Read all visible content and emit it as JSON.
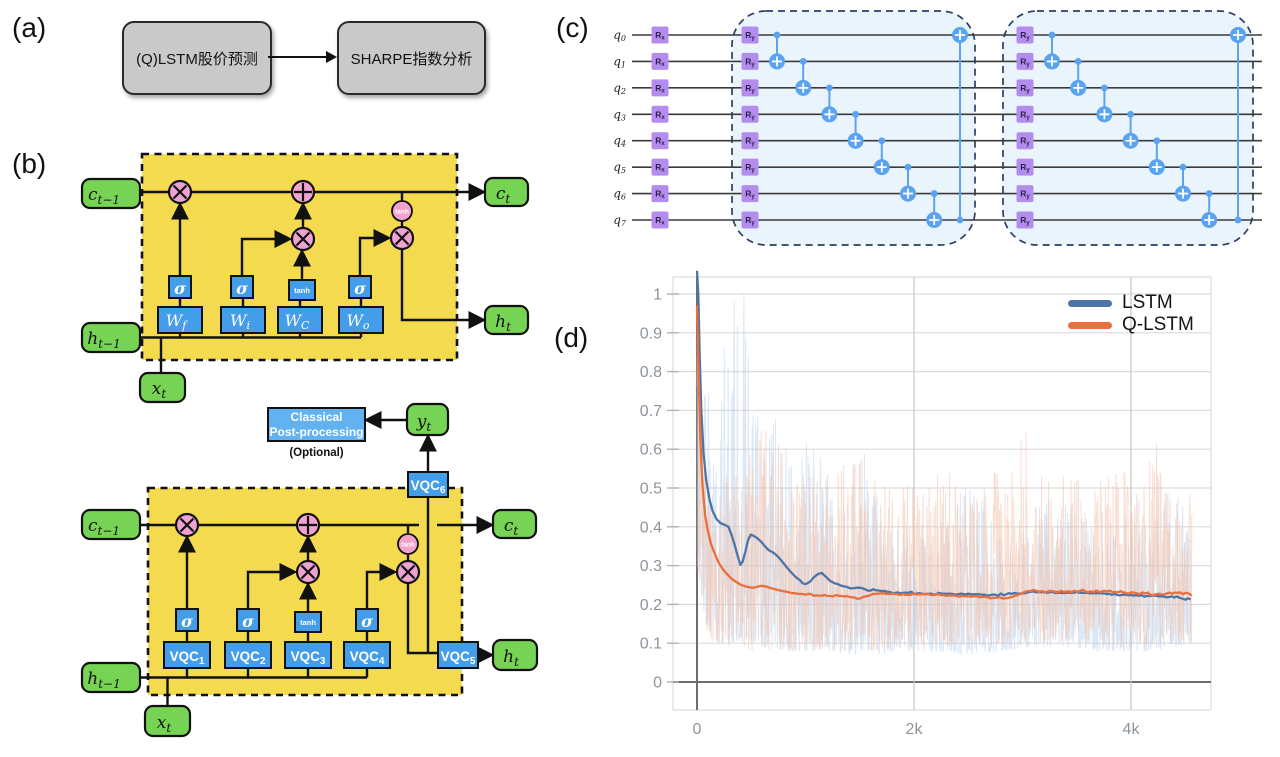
{
  "panels": {
    "a": {
      "label": "(a)",
      "box1": "(Q)LSTM股价预测",
      "box2": "SHARPE指数分析"
    },
    "b": {
      "label": "(b)",
      "classical_lstm": {
        "c_prev": {
          "base": "c",
          "sub": "t−1"
        },
        "h_prev": {
          "base": "h",
          "sub": "t−1"
        },
        "x_in": {
          "base": "x",
          "sub": "t"
        },
        "c_out": {
          "base": "c",
          "sub": "t"
        },
        "h_out": {
          "base": "h",
          "sub": "t"
        },
        "tanh_node": "tanh",
        "gates": [
          {
            "act": "σ",
            "w": {
              "base": "W",
              "sub": "f"
            }
          },
          {
            "act": "σ",
            "w": {
              "base": "W",
              "sub": "i"
            }
          },
          {
            "act": "tanh",
            "w": {
              "base": "W",
              "sub": "C"
            }
          },
          {
            "act": "σ",
            "w": {
              "base": "W",
              "sub": "o"
            }
          }
        ]
      },
      "qlstm": {
        "c_prev": {
          "base": "c",
          "sub": "t−1"
        },
        "h_prev": {
          "base": "h",
          "sub": "t−1"
        },
        "x_in": {
          "base": "x",
          "sub": "t"
        },
        "c_out": {
          "base": "c",
          "sub": "t"
        },
        "h_out": {
          "base": "h",
          "sub": "t"
        },
        "y_out": {
          "base": "y",
          "sub": "t"
        },
        "tanh_node": "tanh",
        "post_processing": {
          "line1": "Classical",
          "line2": "Post-processing",
          "note": "(Optional)"
        },
        "gates": [
          {
            "act": "σ",
            "w": {
              "base": "VQC",
              "sub": "1"
            }
          },
          {
            "act": "σ",
            "w": {
              "base": "VQC",
              "sub": "2"
            }
          },
          {
            "act": "tanh",
            "w": {
              "base": "VQC",
              "sub": "3"
            }
          },
          {
            "act": "σ",
            "w": {
              "base": "VQC",
              "sub": "4"
            }
          }
        ],
        "vqc5": {
          "base": "VQC",
          "sub": "5"
        },
        "vqc6": {
          "base": "VQC",
          "sub": "6"
        }
      }
    },
    "c": {
      "label": "(c)",
      "qubits": [
        {
          "base": "q",
          "sub": "0"
        },
        {
          "base": "q",
          "sub": "1"
        },
        {
          "base": "q",
          "sub": "2"
        },
        {
          "base": "q",
          "sub": "3"
        },
        {
          "base": "q",
          "sub": "4"
        },
        {
          "base": "q",
          "sub": "5"
        },
        {
          "base": "q",
          "sub": "6"
        },
        {
          "base": "q",
          "sub": "7"
        }
      ],
      "rx_gate": {
        "base": "R",
        "sub": "x"
      },
      "ry_gate": {
        "base": "R",
        "sub": "y"
      },
      "blocks": [
        {
          "cnots": [
            [
              0,
              1
            ],
            [
              1,
              2
            ],
            [
              2,
              3
            ],
            [
              3,
              4
            ],
            [
              4,
              5
            ],
            [
              5,
              6
            ],
            [
              6,
              7
            ],
            [
              7,
              0
            ]
          ]
        },
        {
          "cnots": [
            [
              0,
              1
            ],
            [
              1,
              2
            ],
            [
              2,
              3
            ],
            [
              3,
              4
            ],
            [
              4,
              5
            ],
            [
              5,
              6
            ],
            [
              6,
              7
            ],
            [
              7,
              0
            ]
          ]
        }
      ],
      "colors": {
        "gate_purple": "#b48cee",
        "gate_text": "#2d2550",
        "cnot_blue": "#5aa2f2",
        "block_fill": "#eaf4fc",
        "block_border": "#2b3f63",
        "wire": "#3a3a3a"
      }
    },
    "d": {
      "label": "(d)"
    }
  },
  "chart_data": {
    "type": "line",
    "title": "",
    "xlabel": "",
    "ylabel": "",
    "x_ticks": [
      {
        "value": 0,
        "label": "0"
      },
      {
        "value": 2000,
        "label": "2k"
      },
      {
        "value": 4000,
        "label": "4k"
      }
    ],
    "y_ticks": [
      {
        "value": 0,
        "label": "0"
      },
      {
        "value": 0.1,
        "label": "0.1"
      },
      {
        "value": 0.2,
        "label": "0.2"
      },
      {
        "value": 0.3,
        "label": "0.3"
      },
      {
        "value": 0.4,
        "label": "0.4"
      },
      {
        "value": 0.5,
        "label": "0.5"
      },
      {
        "value": 0.6,
        "label": "0.6"
      },
      {
        "value": 0.7,
        "label": "0.7"
      },
      {
        "value": 0.8,
        "label": "0.8"
      },
      {
        "value": 0.9,
        "label": "0.9"
      },
      {
        "value": 1,
        "label": "1"
      }
    ],
    "xlim": [
      -220,
      4740
    ],
    "ylim": [
      -0.072,
      1.044
    ],
    "grid": true,
    "legend_position": "top-right",
    "legend": [
      "LSTM",
      "Q-LSTM"
    ],
    "series": [
      {
        "name": "LSTM",
        "color": "#4e74a6",
        "smoothed": [
          [
            0,
            1.06
          ],
          [
            12,
            1.0
          ],
          [
            25,
            0.84
          ],
          [
            40,
            0.7
          ],
          [
            60,
            0.59
          ],
          [
            85,
            0.52
          ],
          [
            115,
            0.47
          ],
          [
            145,
            0.44
          ],
          [
            180,
            0.42
          ],
          [
            215,
            0.41
          ],
          [
            255,
            0.405
          ],
          [
            290,
            0.4
          ],
          [
            320,
            0.378
          ],
          [
            350,
            0.35
          ],
          [
            380,
            0.32
          ],
          [
            400,
            0.302
          ],
          [
            420,
            0.31
          ],
          [
            445,
            0.335
          ],
          [
            470,
            0.365
          ],
          [
            495,
            0.38
          ],
          [
            520,
            0.377
          ],
          [
            555,
            0.371
          ],
          [
            590,
            0.362
          ],
          [
            625,
            0.35
          ],
          [
            660,
            0.34
          ],
          [
            700,
            0.334
          ],
          [
            740,
            0.325
          ],
          [
            780,
            0.312
          ],
          [
            820,
            0.298
          ],
          [
            860,
            0.285
          ],
          [
            900,
            0.273
          ],
          [
            950,
            0.262
          ],
          [
            1000,
            0.252
          ],
          [
            1040,
            0.258
          ],
          [
            1080,
            0.271
          ],
          [
            1120,
            0.279
          ],
          [
            1150,
            0.281
          ],
          [
            1185,
            0.272
          ],
          [
            1225,
            0.261
          ],
          [
            1270,
            0.254
          ],
          [
            1320,
            0.249
          ],
          [
            1380,
            0.245
          ],
          [
            1450,
            0.242
          ],
          [
            1550,
            0.239
          ],
          [
            1650,
            0.236
          ],
          [
            1750,
            0.233
          ],
          [
            1850,
            0.231
          ],
          [
            1950,
            0.23
          ],
          [
            2050,
            0.229
          ],
          [
            2150,
            0.228
          ],
          [
            2250,
            0.228
          ],
          [
            2350,
            0.227
          ],
          [
            2450,
            0.227
          ],
          [
            2550,
            0.226
          ],
          [
            2650,
            0.225
          ],
          [
            2750,
            0.225
          ],
          [
            2850,
            0.226
          ],
          [
            2950,
            0.228
          ],
          [
            3050,
            0.231
          ],
          [
            3150,
            0.232
          ],
          [
            3250,
            0.231
          ],
          [
            3350,
            0.23
          ],
          [
            3450,
            0.23
          ],
          [
            3550,
            0.23
          ],
          [
            3650,
            0.229
          ],
          [
            3750,
            0.228
          ],
          [
            3850,
            0.227
          ],
          [
            3950,
            0.225
          ],
          [
            4050,
            0.224
          ],
          [
            4150,
            0.222
          ],
          [
            4250,
            0.221
          ],
          [
            4350,
            0.219
          ],
          [
            4450,
            0.217
          ],
          [
            4550,
            0.213
          ]
        ]
      },
      {
        "name": "Q-LSTM",
        "color": "#e9703e",
        "smoothed": [
          [
            0,
            0.97
          ],
          [
            15,
            0.8
          ],
          [
            30,
            0.63
          ],
          [
            50,
            0.51
          ],
          [
            75,
            0.43
          ],
          [
            100,
            0.39
          ],
          [
            130,
            0.355
          ],
          [
            165,
            0.33
          ],
          [
            200,
            0.307
          ],
          [
            240,
            0.29
          ],
          [
            280,
            0.277
          ],
          [
            320,
            0.266
          ],
          [
            360,
            0.258
          ],
          [
            400,
            0.251
          ],
          [
            440,
            0.247
          ],
          [
            480,
            0.244
          ],
          [
            520,
            0.243
          ],
          [
            560,
            0.246
          ],
          [
            600,
            0.248
          ],
          [
            640,
            0.246
          ],
          [
            680,
            0.242
          ],
          [
            720,
            0.239
          ],
          [
            760,
            0.236
          ],
          [
            800,
            0.234
          ],
          [
            850,
            0.231
          ],
          [
            900,
            0.229
          ],
          [
            950,
            0.227
          ],
          [
            1000,
            0.225
          ],
          [
            1100,
            0.223
          ],
          [
            1200,
            0.222
          ],
          [
            1280,
            0.224
          ],
          [
            1350,
            0.221
          ],
          [
            1420,
            0.218
          ],
          [
            1500,
            0.215
          ],
          [
            1560,
            0.221
          ],
          [
            1620,
            0.227
          ],
          [
            1680,
            0.228
          ],
          [
            1750,
            0.227
          ],
          [
            1850,
            0.226
          ],
          [
            1950,
            0.225
          ],
          [
            2050,
            0.226
          ],
          [
            2150,
            0.225
          ],
          [
            2250,
            0.224
          ],
          [
            2350,
            0.223
          ],
          [
            2450,
            0.222
          ],
          [
            2550,
            0.221
          ],
          [
            2650,
            0.219
          ],
          [
            2750,
            0.217
          ],
          [
            2820,
            0.215
          ],
          [
            2890,
            0.218
          ],
          [
            2950,
            0.224
          ],
          [
            3010,
            0.231
          ],
          [
            3070,
            0.234
          ],
          [
            3130,
            0.235
          ],
          [
            3230,
            0.233
          ],
          [
            3330,
            0.232
          ],
          [
            3430,
            0.234
          ],
          [
            3530,
            0.235
          ],
          [
            3630,
            0.234
          ],
          [
            3730,
            0.233
          ],
          [
            3830,
            0.232
          ],
          [
            3930,
            0.231
          ],
          [
            4030,
            0.23
          ],
          [
            4130,
            0.228
          ],
          [
            4230,
            0.226
          ],
          [
            4330,
            0.228
          ],
          [
            4430,
            0.23
          ],
          [
            4530,
            0.228
          ],
          [
            4560,
            0.223
          ]
        ]
      }
    ],
    "raw_overlay": {
      "seed": 1337,
      "step": 4,
      "x_max": 4560,
      "series": [
        {
          "name": "LSTM-raw",
          "color": "#afc9e6",
          "opacity": 0.45,
          "skew": 2.1,
          "envelope": [
            [
              0,
              0.3,
              1.06
            ],
            [
              80,
              0.15,
              0.85
            ],
            [
              200,
              0.1,
              0.65
            ],
            [
              260,
              0.1,
              1.06
            ],
            [
              420,
              0.1,
              1.06
            ],
            [
              520,
              0.1,
              0.85
            ],
            [
              620,
              0.09,
              0.62
            ],
            [
              800,
              0.08,
              0.75
            ],
            [
              900,
              0.08,
              0.55
            ],
            [
              1050,
              0.08,
              0.66
            ],
            [
              1200,
              0.08,
              0.52
            ],
            [
              1500,
              0.07,
              0.63
            ],
            [
              1700,
              0.07,
              0.5
            ],
            [
              1900,
              0.08,
              0.42
            ],
            [
              2200,
              0.08,
              0.4
            ],
            [
              2500,
              0.07,
              0.53
            ],
            [
              2800,
              0.08,
              0.42
            ],
            [
              3100,
              0.09,
              0.45
            ],
            [
              3400,
              0.09,
              0.5
            ],
            [
              3700,
              0.08,
              0.45
            ],
            [
              4000,
              0.08,
              0.45
            ],
            [
              4200,
              0.08,
              0.55
            ],
            [
              4400,
              0.09,
              0.5
            ],
            [
              4560,
              0.1,
              0.45
            ]
          ]
        },
        {
          "name": "Q-LSTM-raw",
          "color": "#f4bda6",
          "opacity": 0.5,
          "skew": 1.45,
          "envelope": [
            [
              0,
              0.3,
              0.97
            ],
            [
              60,
              0.15,
              0.6
            ],
            [
              150,
              0.1,
              0.52
            ],
            [
              300,
              0.09,
              0.55
            ],
            [
              500,
              0.08,
              0.65
            ],
            [
              700,
              0.08,
              0.65
            ],
            [
              900,
              0.08,
              0.56
            ],
            [
              1100,
              0.08,
              0.52
            ],
            [
              1300,
              0.08,
              0.55
            ],
            [
              1500,
              0.08,
              0.6
            ],
            [
              1700,
              0.08,
              0.52
            ],
            [
              1900,
              0.09,
              0.55
            ],
            [
              2100,
              0.09,
              0.52
            ],
            [
              2300,
              0.09,
              0.55
            ],
            [
              2500,
              0.09,
              0.52
            ],
            [
              2700,
              0.09,
              0.55
            ],
            [
              2900,
              0.1,
              0.55
            ],
            [
              3000,
              0.1,
              0.7
            ],
            [
              3100,
              0.1,
              0.55
            ],
            [
              3300,
              0.1,
              0.52
            ],
            [
              3500,
              0.1,
              0.55
            ],
            [
              3700,
              0.09,
              0.52
            ],
            [
              3900,
              0.09,
              0.55
            ],
            [
              4100,
              0.09,
              0.52
            ],
            [
              4250,
              0.1,
              0.64
            ],
            [
              4400,
              0.1,
              0.55
            ],
            [
              4560,
              0.1,
              0.5
            ]
          ]
        }
      ]
    },
    "axis_colors": {
      "grid": "#dcdcdc",
      "grid_mid": "#c6c6c6",
      "zero_line": "#6e6e6e",
      "tick_label": "#8d949b"
    }
  },
  "colors": {
    "green_node": "#77d353",
    "yellow_cell": "#f3da4e",
    "blue_box": "#449de8",
    "light_blue_box": "#62b1f0",
    "pink_op": "#f0a2d2",
    "gray_box": "#c9c9c9"
  }
}
